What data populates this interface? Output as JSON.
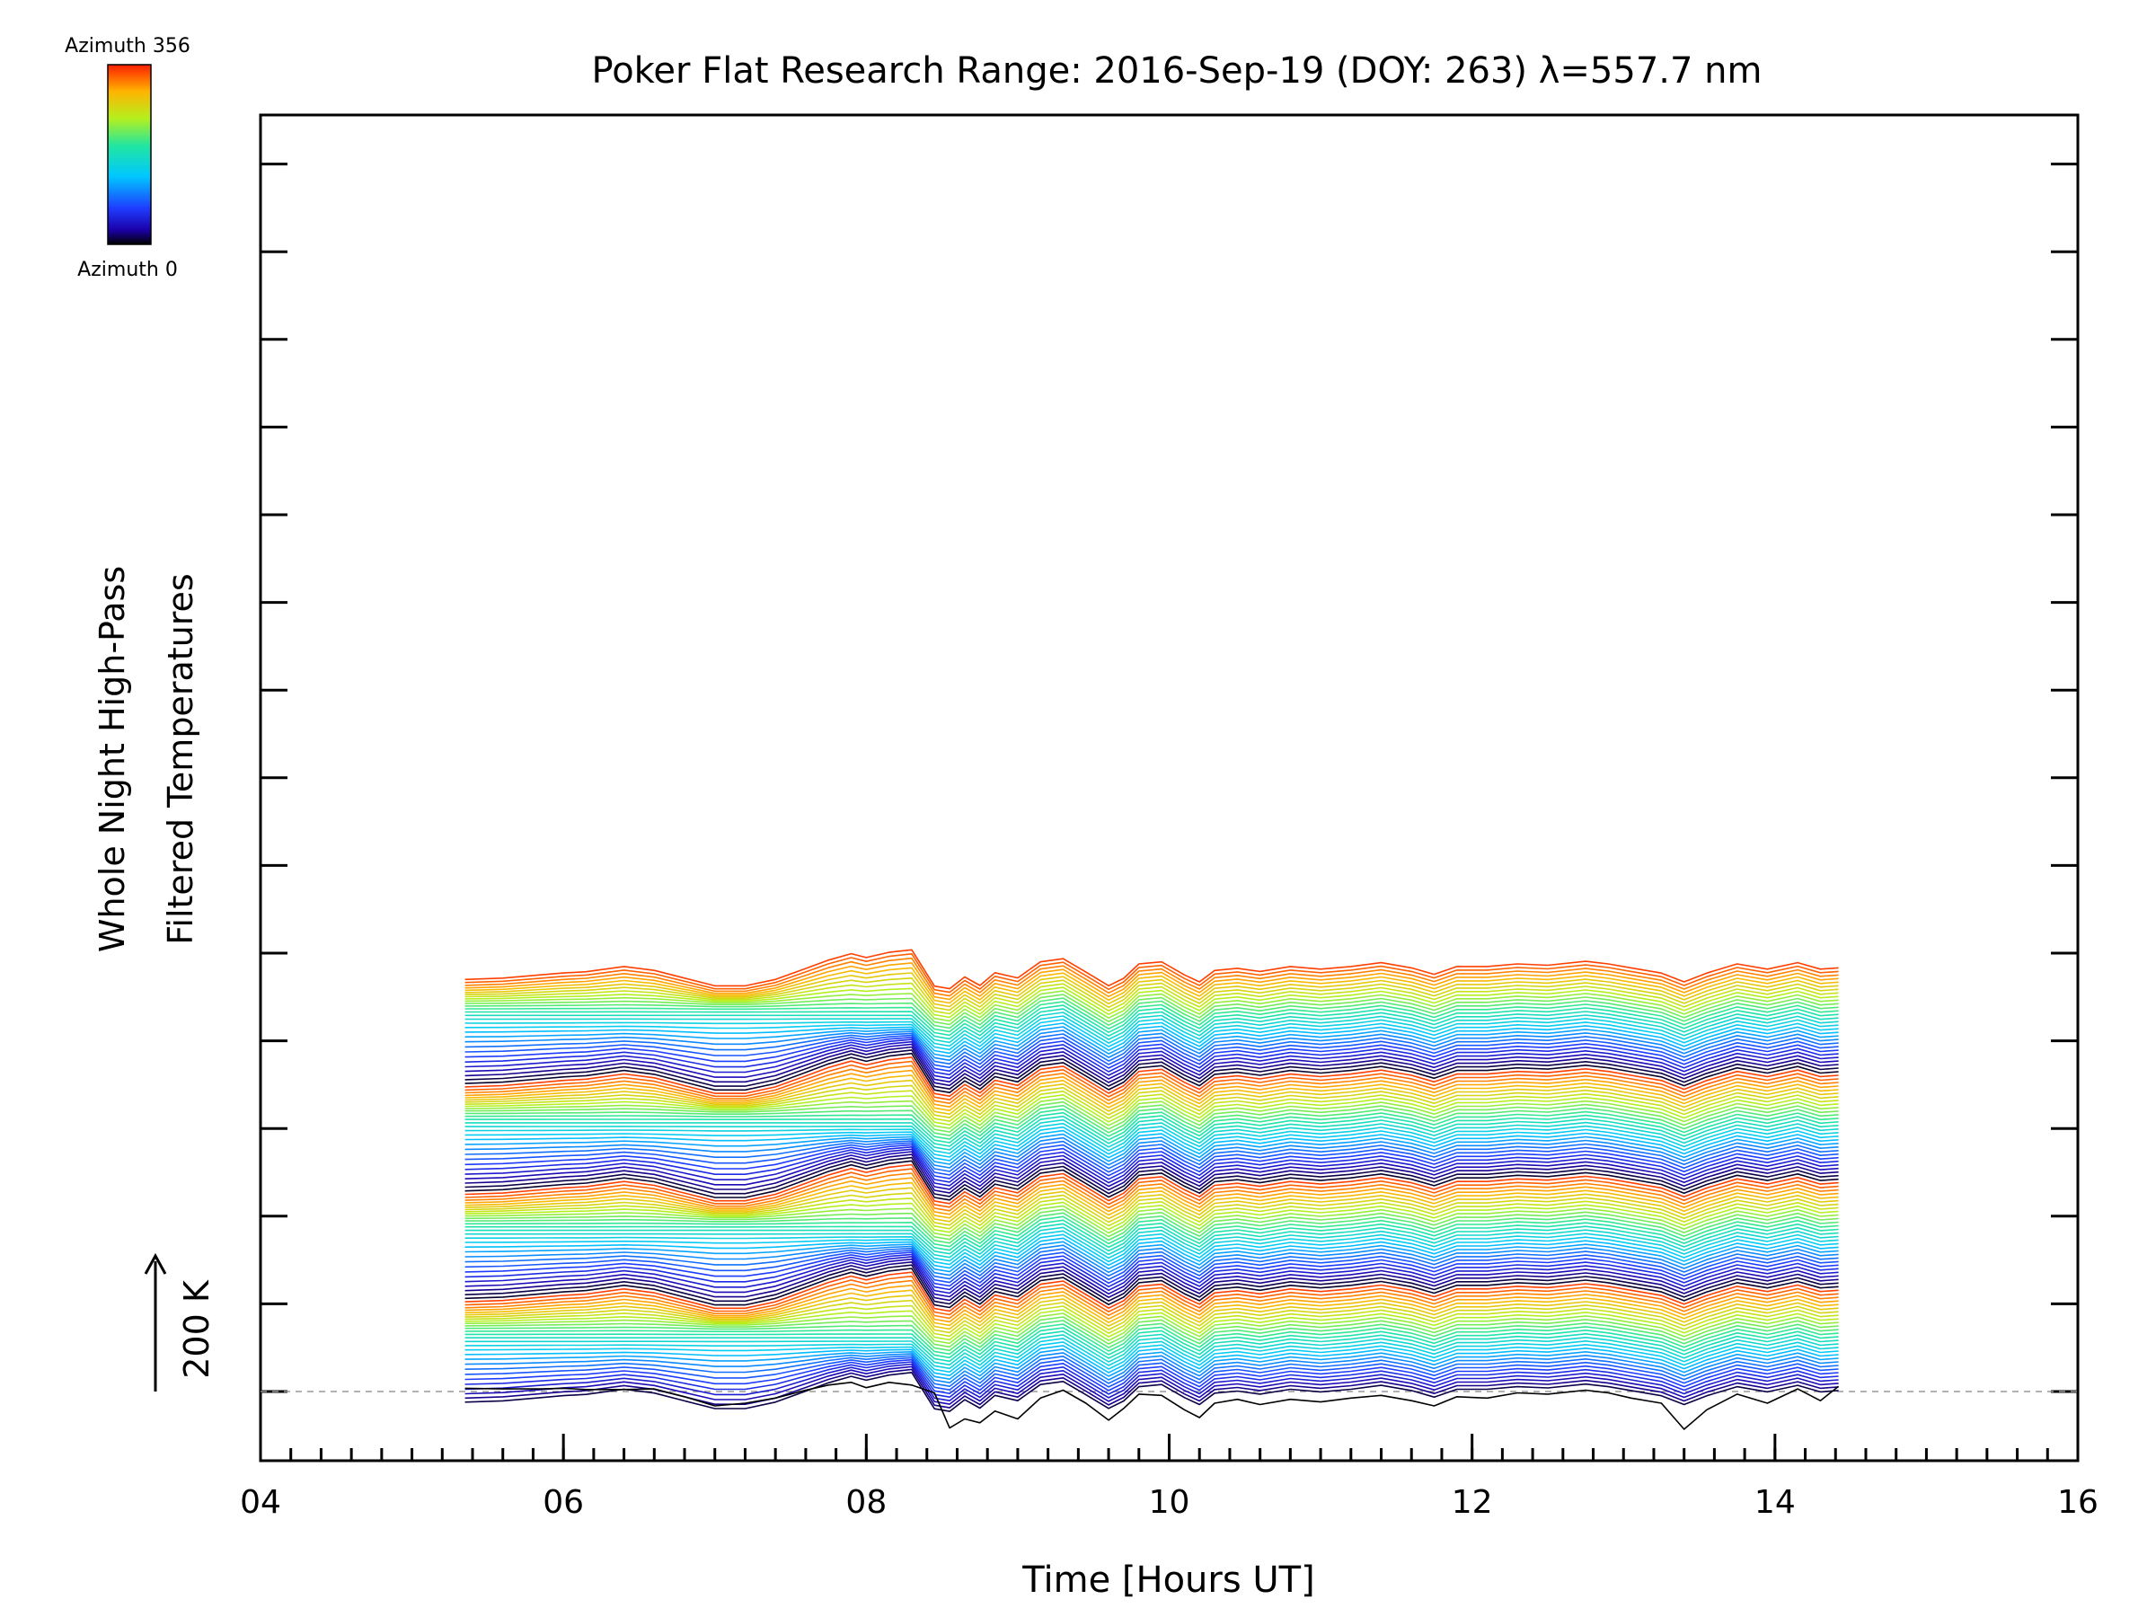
{
  "chart_data": {
    "type": "line",
    "title": "Poker Flat Research Range: 2016-Sep-19 (DOY: 263) λ=557.7 nm",
    "xlabel": "Time [Hours UT]",
    "ylabel_line1": "Whole Night High-Pass",
    "ylabel_line2": "Filtered Temperatures",
    "xlim": [
      4,
      16
    ],
    "x_ticks": [
      4,
      6,
      8,
      10,
      12,
      14,
      16
    ],
    "x_tick_labels": [
      "04",
      "06",
      "08",
      "10",
      "12",
      "14",
      "16"
    ],
    "x_minor_step": 0.2,
    "y_major_ticks": 15,
    "scale_bar_label": "200 K",
    "scale_bar_kelvin": 200,
    "colorbar": {
      "top_label": "Azimuth 356",
      "bottom_label": "Azimuth 0"
    },
    "baseline": "dashed",
    "data_start_hour": 5.35,
    "data_end_hour": 14.42,
    "series_count": 120,
    "series_spacing_kelvin": 5.5,
    "series_repeat_period": 30,
    "time_points": [
      5.35,
      5.6,
      5.85,
      6.0,
      6.15,
      6.4,
      6.6,
      6.8,
      7.0,
      7.2,
      7.4,
      7.6,
      7.75,
      7.9,
      8.0,
      8.15,
      8.3,
      8.45,
      8.55,
      8.65,
      8.75,
      8.85,
      9.0,
      9.15,
      9.3,
      9.45,
      9.6,
      9.7,
      9.8,
      9.95,
      10.1,
      10.2,
      10.3,
      10.45,
      10.6,
      10.8,
      11.0,
      11.2,
      11.4,
      11.6,
      11.75,
      11.9,
      12.1,
      12.3,
      12.5,
      12.75,
      12.9,
      13.05,
      13.25,
      13.4,
      13.55,
      13.75,
      13.95,
      14.15,
      14.3,
      14.42
    ],
    "common_wave_kelvin": [
      0,
      0,
      0,
      0,
      0,
      0,
      0,
      0,
      0,
      0,
      0,
      0,
      0,
      0,
      0,
      0,
      5,
      -30,
      -38,
      -18,
      -32,
      -12,
      -20,
      5,
      10,
      -10,
      -32,
      -20,
      2,
      5,
      -15,
      -26,
      -8,
      -5,
      -10,
      -2,
      -6,
      -2,
      4,
      -4,
      -14,
      -2,
      -2,
      2,
      0,
      6,
      2,
      -4,
      -12,
      -26,
      -12,
      2,
      -6,
      4,
      -6,
      -4
    ],
    "azimuth_profile_kelvin": [
      -22,
      -20,
      -15,
      -12,
      -10,
      -2,
      -8,
      -20,
      -32,
      -32,
      -22,
      -5,
      8,
      18,
      12,
      20,
      24,
      -38,
      -30,
      -18,
      -28,
      -10,
      -18,
      6,
      10,
      -12,
      -30,
      -20,
      2,
      6,
      -14,
      -24,
      -8,
      -4,
      -8,
      -2,
      -6,
      -2,
      4,
      -4,
      -14,
      -2,
      -2,
      2,
      0,
      6,
      2,
      -4,
      -12,
      -24,
      -12,
      2,
      -6,
      4,
      -6,
      -4
    ],
    "bottom_series_kelvin": [
      5,
      4,
      4,
      5,
      3,
      3,
      4,
      -8,
      -22,
      -18,
      -10,
      2,
      10,
      14,
      6,
      14,
      10,
      -2,
      -56,
      -42,
      -48,
      -30,
      -42,
      -10,
      2,
      -18,
      -44,
      -26,
      -4,
      -6,
      -28,
      -40,
      -18,
      -12,
      -20,
      -12,
      -16,
      -10,
      -6,
      -14,
      -22,
      -8,
      -10,
      -2,
      -4,
      2,
      -2,
      -10,
      -18,
      -58,
      -28,
      -4,
      -18,
      4,
      -14,
      8
    ]
  }
}
